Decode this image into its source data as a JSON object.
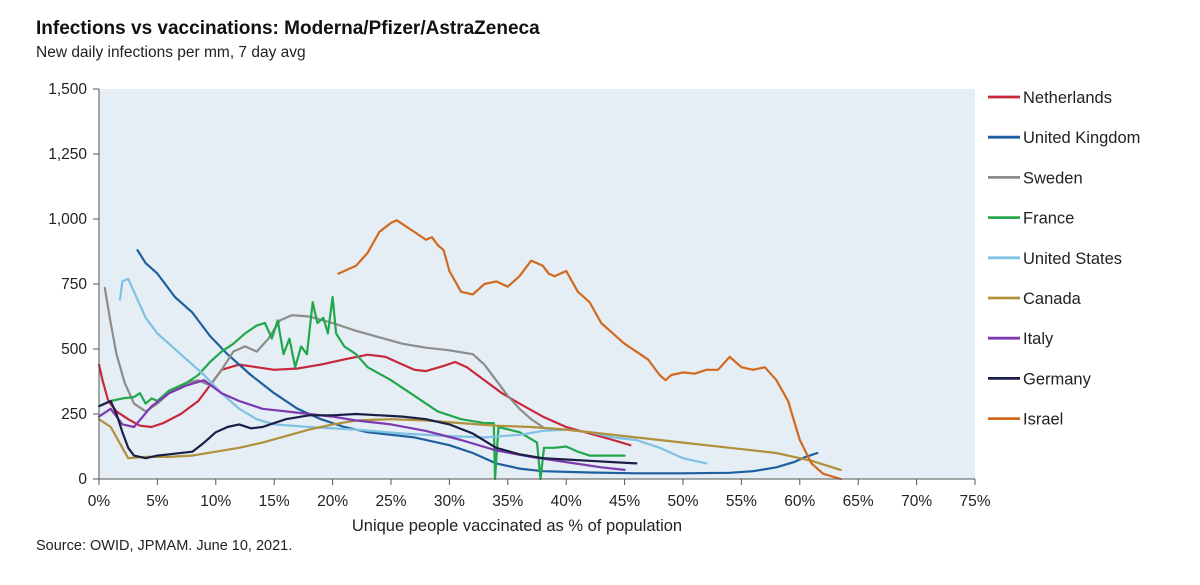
{
  "header": {
    "title": "Infections vs vaccinations: Moderna/Pfizer/AstraZeneca",
    "subtitle": "New daily infections per mm, 7 day avg"
  },
  "footer": {
    "source": "Source: OWID, JPMAM. June 10, 2021."
  },
  "chart_data": {
    "type": "line",
    "title": "Infections vs vaccinations: Moderna/Pfizer/AstraZeneca",
    "subtitle": "New daily infections per mm, 7 day avg",
    "xlabel": "Unique people vaccinated as % of population",
    "ylabel": "",
    "xlim": [
      0,
      75
    ],
    "ylim": [
      0,
      1500
    ],
    "x_ticks": [
      0,
      5,
      10,
      15,
      20,
      25,
      30,
      35,
      40,
      45,
      50,
      55,
      60,
      65,
      70,
      75
    ],
    "x_tick_labels": [
      "0%",
      "5%",
      "10%",
      "15%",
      "20%",
      "25%",
      "30%",
      "35%",
      "40%",
      "45%",
      "50%",
      "55%",
      "60%",
      "65%",
      "70%",
      "75%"
    ],
    "y_ticks": [
      0,
      250,
      500,
      750,
      1000,
      1250,
      1500
    ],
    "y_tick_labels": [
      "0",
      "250",
      "500",
      "750",
      "1,000",
      "1,250",
      "1,500"
    ],
    "grid": false,
    "legend_position": "right",
    "plot_background": "#e4eef4",
    "series": [
      {
        "name": "Netherlands",
        "color": "#c8283c",
        "points": [
          [
            0,
            440
          ],
          [
            0.3,
            380
          ],
          [
            0.8,
            300
          ],
          [
            1.5,
            260
          ],
          [
            2.5,
            230
          ],
          [
            3.5,
            205
          ],
          [
            4.5,
            200
          ],
          [
            5.5,
            215
          ],
          [
            7,
            250
          ],
          [
            8.5,
            300
          ],
          [
            9.5,
            360
          ],
          [
            10.5,
            420
          ],
          [
            12,
            440
          ],
          [
            13.5,
            430
          ],
          [
            15,
            420
          ],
          [
            17,
            425
          ],
          [
            19,
            440
          ],
          [
            21,
            460
          ],
          [
            23,
            478
          ],
          [
            24.5,
            470
          ],
          [
            26,
            440
          ],
          [
            27,
            420
          ],
          [
            28,
            415
          ],
          [
            29.5,
            435
          ],
          [
            30.5,
            450
          ],
          [
            31.5,
            430
          ],
          [
            33,
            380
          ],
          [
            34.5,
            330
          ],
          [
            36,
            290
          ],
          [
            38,
            240
          ],
          [
            40,
            200
          ],
          [
            42,
            175
          ],
          [
            44,
            150
          ],
          [
            45.5,
            130
          ]
        ]
      },
      {
        "name": "United Kingdom",
        "color": "#1f5f9e",
        "points": [
          [
            3.3,
            880
          ],
          [
            4,
            830
          ],
          [
            5,
            790
          ],
          [
            5.5,
            760
          ],
          [
            6.5,
            700
          ],
          [
            8,
            640
          ],
          [
            9.5,
            550
          ],
          [
            11,
            480
          ],
          [
            13,
            400
          ],
          [
            15,
            330
          ],
          [
            17,
            270
          ],
          [
            19,
            230
          ],
          [
            21,
            200
          ],
          [
            23,
            180
          ],
          [
            25,
            170
          ],
          [
            27,
            160
          ],
          [
            30,
            130
          ],
          [
            32,
            100
          ],
          [
            34,
            60
          ],
          [
            36,
            40
          ],
          [
            38,
            30
          ],
          [
            42,
            25
          ],
          [
            46,
            22
          ],
          [
            50,
            22
          ],
          [
            54,
            24
          ],
          [
            56,
            30
          ],
          [
            58,
            45
          ],
          [
            59.5,
            65
          ],
          [
            60.5,
            85
          ],
          [
            61.5,
            100
          ]
        ]
      },
      {
        "name": "Sweden",
        "color": "#8c8c8c",
        "points": [
          [
            0.5,
            735
          ],
          [
            1,
            600
          ],
          [
            1.5,
            480
          ],
          [
            2.2,
            370
          ],
          [
            3,
            290
          ],
          [
            4,
            260
          ],
          [
            5,
            290
          ],
          [
            6,
            330
          ],
          [
            7.5,
            370
          ],
          [
            8.5,
            380
          ],
          [
            9.5,
            360
          ],
          [
            10.5,
            420
          ],
          [
            11.5,
            490
          ],
          [
            12.5,
            510
          ],
          [
            13.5,
            490
          ],
          [
            14.5,
            540
          ],
          [
            15.5,
            610
          ],
          [
            16.5,
            630
          ],
          [
            18,
            625
          ],
          [
            20,
            600
          ],
          [
            22,
            570
          ],
          [
            24,
            545
          ],
          [
            26,
            520
          ],
          [
            28,
            505
          ],
          [
            30,
            495
          ],
          [
            32,
            480
          ],
          [
            33,
            440
          ],
          [
            34,
            380
          ],
          [
            35,
            320
          ],
          [
            36,
            270
          ],
          [
            37,
            230
          ],
          [
            38,
            200
          ]
        ]
      },
      {
        "name": "France",
        "color": "#22a74c",
        "points": [
          [
            0,
            280
          ],
          [
            1,
            300
          ],
          [
            2,
            310
          ],
          [
            3,
            315
          ],
          [
            3.5,
            330
          ],
          [
            4,
            290
          ],
          [
            4.5,
            310
          ],
          [
            5,
            300
          ],
          [
            6,
            340
          ],
          [
            7.5,
            370
          ],
          [
            8.5,
            400
          ],
          [
            9.5,
            450
          ],
          [
            10.5,
            490
          ],
          [
            11.5,
            520
          ],
          [
            12.5,
            560
          ],
          [
            13.5,
            590
          ],
          [
            14.2,
            600
          ],
          [
            14.8,
            540
          ],
          [
            15.3,
            610
          ],
          [
            15.8,
            480
          ],
          [
            16.3,
            540
          ],
          [
            16.8,
            430
          ],
          [
            17.3,
            510
          ],
          [
            17.8,
            480
          ],
          [
            18.3,
            680
          ],
          [
            18.7,
            600
          ],
          [
            19.2,
            620
          ],
          [
            19.6,
            560
          ],
          [
            20,
            700
          ],
          [
            20.3,
            560
          ],
          [
            21,
            510
          ],
          [
            22,
            480
          ],
          [
            23,
            430
          ],
          [
            25,
            380
          ],
          [
            27,
            320
          ],
          [
            29,
            260
          ],
          [
            31,
            230
          ],
          [
            33,
            215
          ],
          [
            33.8,
            215
          ],
          [
            33.9,
            0
          ],
          [
            34.2,
            200
          ],
          [
            36,
            180
          ],
          [
            37.5,
            140
          ],
          [
            37.8,
            0
          ],
          [
            38.1,
            120
          ],
          [
            39,
            120
          ],
          [
            40,
            125
          ],
          [
            41,
            105
          ],
          [
            42,
            90
          ],
          [
            44,
            90
          ],
          [
            45,
            90
          ]
        ]
      },
      {
        "name": "United States",
        "color": "#7ec1e2",
        "points": [
          [
            1.8,
            690
          ],
          [
            2,
            760
          ],
          [
            2.5,
            770
          ],
          [
            3,
            720
          ],
          [
            4,
            620
          ],
          [
            5,
            560
          ],
          [
            6,
            520
          ],
          [
            7.5,
            460
          ],
          [
            9,
            400
          ],
          [
            10.5,
            330
          ],
          [
            12,
            270
          ],
          [
            13.5,
            230
          ],
          [
            15,
            210
          ],
          [
            18,
            200
          ],
          [
            22,
            190
          ],
          [
            26,
            175
          ],
          [
            30,
            165
          ],
          [
            33,
            160
          ],
          [
            36,
            170
          ],
          [
            38,
            185
          ],
          [
            40,
            190
          ],
          [
            42,
            180
          ],
          [
            44,
            160
          ],
          [
            46,
            150
          ],
          [
            48,
            120
          ],
          [
            50,
            80
          ],
          [
            52,
            60
          ]
        ]
      },
      {
        "name": "Canada",
        "color": "#b0903a",
        "points": [
          [
            0,
            230
          ],
          [
            1,
            200
          ],
          [
            2,
            120
          ],
          [
            2.5,
            80
          ],
          [
            4,
            85
          ],
          [
            6,
            85
          ],
          [
            8,
            90
          ],
          [
            10,
            105
          ],
          [
            12,
            120
          ],
          [
            14,
            140
          ],
          [
            16,
            165
          ],
          [
            18,
            190
          ],
          [
            20,
            210
          ],
          [
            22,
            225
          ],
          [
            25,
            230
          ],
          [
            28,
            225
          ],
          [
            31,
            215
          ],
          [
            34,
            205
          ],
          [
            37,
            200
          ],
          [
            40,
            190
          ],
          [
            43,
            175
          ],
          [
            46,
            160
          ],
          [
            50,
            140
          ],
          [
            54,
            120
          ],
          [
            58,
            100
          ],
          [
            61,
            70
          ],
          [
            63.5,
            35
          ]
        ]
      },
      {
        "name": "Italy",
        "color": "#7d3ab0",
        "points": [
          [
            0,
            240
          ],
          [
            1,
            270
          ],
          [
            2,
            210
          ],
          [
            3,
            200
          ],
          [
            4.5,
            280
          ],
          [
            6,
            330
          ],
          [
            7.5,
            360
          ],
          [
            9,
            380
          ],
          [
            10.5,
            330
          ],
          [
            12,
            300
          ],
          [
            14,
            270
          ],
          [
            16,
            260
          ],
          [
            18,
            250
          ],
          [
            20,
            240
          ],
          [
            22,
            225
          ],
          [
            25,
            210
          ],
          [
            28,
            185
          ],
          [
            31,
            150
          ],
          [
            34,
            110
          ],
          [
            37,
            85
          ],
          [
            40,
            65
          ],
          [
            43,
            45
          ],
          [
            45,
            35
          ]
        ]
      },
      {
        "name": "Germany",
        "color": "#1b1f45",
        "points": [
          [
            0,
            280
          ],
          [
            1,
            300
          ],
          [
            1.5,
            250
          ],
          [
            2,
            180
          ],
          [
            2.5,
            120
          ],
          [
            3,
            90
          ],
          [
            4,
            80
          ],
          [
            5,
            90
          ],
          [
            6,
            95
          ],
          [
            8,
            105
          ],
          [
            9,
            140
          ],
          [
            10,
            180
          ],
          [
            11,
            200
          ],
          [
            12,
            210
          ],
          [
            13,
            195
          ],
          [
            14,
            200
          ],
          [
            15,
            215
          ],
          [
            16,
            230
          ],
          [
            18,
            245
          ],
          [
            20,
            245
          ],
          [
            22,
            250
          ],
          [
            24,
            245
          ],
          [
            26,
            240
          ],
          [
            28,
            230
          ],
          [
            30,
            210
          ],
          [
            32,
            175
          ],
          [
            34,
            120
          ],
          [
            36,
            95
          ],
          [
            38,
            80
          ],
          [
            40,
            75
          ],
          [
            42,
            70
          ],
          [
            44,
            65
          ],
          [
            46,
            60
          ]
        ]
      },
      {
        "name": "Israel",
        "color": "#d2691e",
        "points": [
          [
            20.5,
            790
          ],
          [
            22,
            820
          ],
          [
            23,
            870
          ],
          [
            24,
            950
          ],
          [
            25,
            985
          ],
          [
            25.5,
            995
          ],
          [
            26,
            980
          ],
          [
            27,
            950
          ],
          [
            28,
            920
          ],
          [
            28.5,
            930
          ],
          [
            29,
            900
          ],
          [
            29.5,
            880
          ],
          [
            30,
            800
          ],
          [
            31,
            720
          ],
          [
            32,
            710
          ],
          [
            33,
            750
          ],
          [
            34,
            760
          ],
          [
            35,
            740
          ],
          [
            36,
            780
          ],
          [
            37,
            840
          ],
          [
            38,
            820
          ],
          [
            38.5,
            790
          ],
          [
            39,
            780
          ],
          [
            40,
            800
          ],
          [
            41,
            720
          ],
          [
            42,
            680
          ],
          [
            43,
            600
          ],
          [
            44,
            560
          ],
          [
            45,
            520
          ],
          [
            46,
            490
          ],
          [
            47,
            460
          ],
          [
            48,
            400
          ],
          [
            48.5,
            380
          ],
          [
            49,
            400
          ],
          [
            50,
            410
          ],
          [
            51,
            405
          ],
          [
            52,
            420
          ],
          [
            53,
            420
          ],
          [
            54,
            470
          ],
          [
            55,
            430
          ],
          [
            56,
            420
          ],
          [
            57,
            430
          ],
          [
            58,
            380
          ],
          [
            59,
            300
          ],
          [
            60,
            150
          ],
          [
            61,
            60
          ],
          [
            62,
            20
          ],
          [
            63.5,
            0
          ]
        ]
      }
    ]
  }
}
